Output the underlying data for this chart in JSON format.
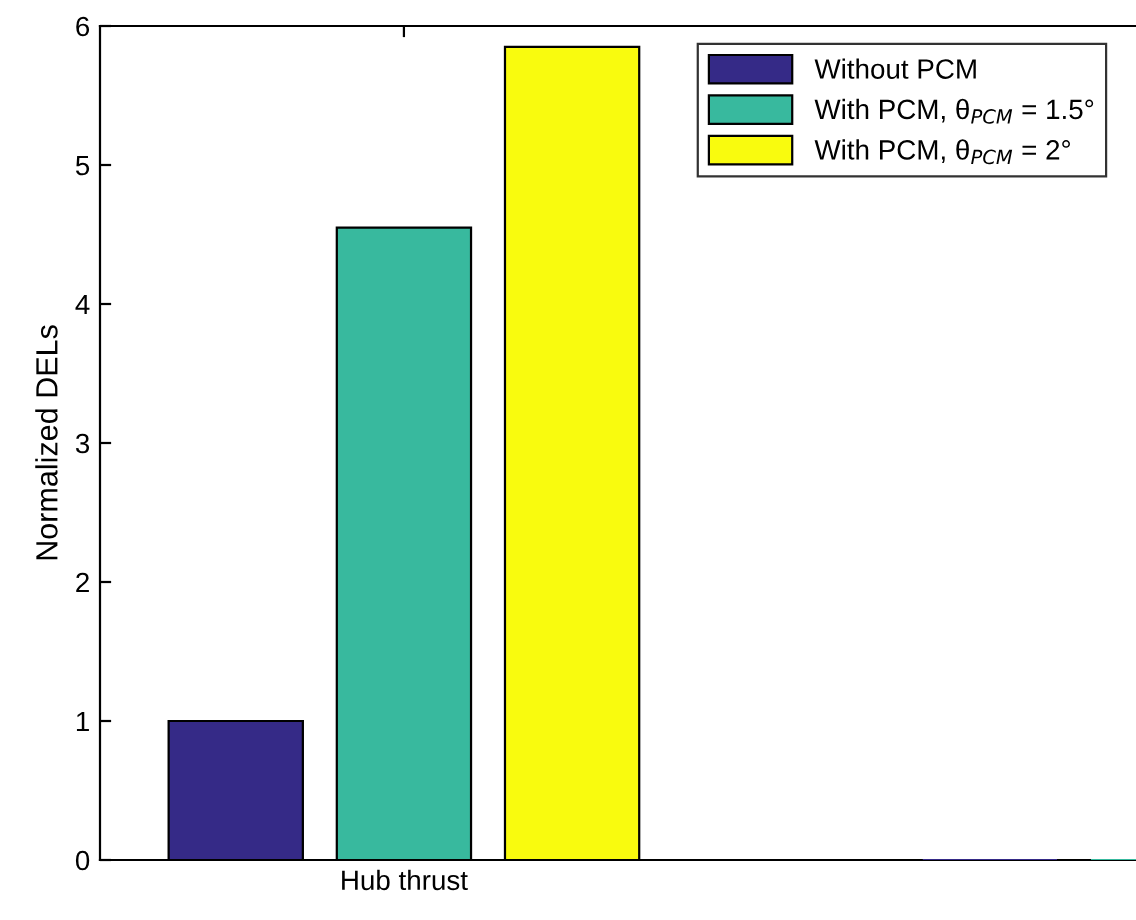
{
  "chart_data": {
    "type": "bar",
    "ylabel": "Normalized DELs",
    "categories": [
      "Hub thrust",
      null
    ],
    "series": [
      {
        "name": "Without PCM",
        "color": "#352a87",
        "values": [
          1.0,
          0
        ]
      },
      {
        "name": "With PCM, θ$_{PCM}$ = 1.5°",
        "color": "#38b99e",
        "values": [
          4.55,
          0
        ]
      },
      {
        "name": "With PCM, θ$_{PCM}$ = 2°",
        "color": "#f9fb0e",
        "values": [
          5.85,
          0
        ]
      }
    ],
    "ylim": [
      0,
      6
    ],
    "yticks": [
      0,
      1,
      2,
      3,
      4,
      5,
      6
    ],
    "grid": false,
    "legend": "top right"
  }
}
